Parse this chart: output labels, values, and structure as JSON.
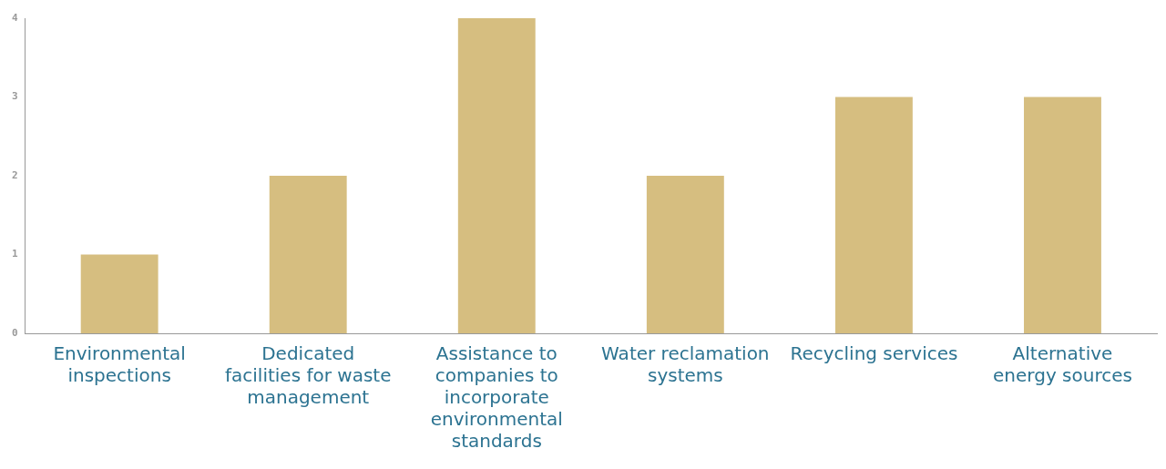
{
  "chart_data": {
    "type": "bar",
    "categories": [
      "Environmental inspections",
      "Dedicated facilities for waste management",
      "Assistance to companies to incorporate environmental standards",
      "Water reclamation systems",
      "Recycling services",
      "Alternative energy sources"
    ],
    "values": [
      1,
      2,
      4,
      2,
      3,
      3
    ],
    "color": "#d6be80",
    "ylim": [
      0,
      4
    ],
    "yticks": [
      0,
      1,
      2,
      3,
      4
    ],
    "grid": false,
    "legend": false
  }
}
